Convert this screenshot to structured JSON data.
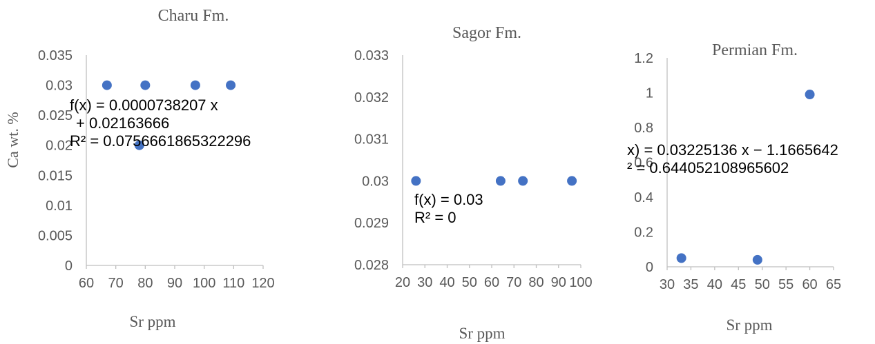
{
  "chart_data": [
    {
      "type": "scatter",
      "title": "Charu Fm.",
      "xlabel": "Sr ppm",
      "ylabel": "Ca wt. %",
      "xlim": [
        60,
        120
      ],
      "ylim": [
        0,
        0.035
      ],
      "x_ticks": [
        "60",
        "70",
        "80",
        "90",
        "100",
        "110",
        "120"
      ],
      "y_ticks": [
        "0",
        "0.005",
        "0.01",
        "0.015",
        "0.02",
        "0.025",
        "0.03",
        "0.035"
      ],
      "points": [
        {
          "x": 67,
          "y": 0.03
        },
        {
          "x": 78,
          "y": 0.02
        },
        {
          "x": 80,
          "y": 0.03
        },
        {
          "x": 97,
          "y": 0.03
        },
        {
          "x": 109,
          "y": 0.03
        }
      ],
      "trendline": {
        "equation_line1": "f(x) = 0.0000738207 x",
        "equation_line2": "+ 0.02163666",
        "r_squared": "R² = 0.0756661865322296"
      },
      "grid": false,
      "legend": "none",
      "marker_color": "#4472c4"
    },
    {
      "type": "scatter",
      "title": "Sagor Fm.",
      "xlabel": "Sr ppm",
      "ylabel": "",
      "xlim": [
        20,
        100
      ],
      "ylim": [
        0.028,
        0.033
      ],
      "x_ticks": [
        "20",
        "30",
        "40",
        "50",
        "60",
        "70",
        "80",
        "90",
        "100"
      ],
      "y_ticks": [
        "0.028",
        "0.029",
        "0.03",
        "0.031",
        "0.032",
        "0.033"
      ],
      "points": [
        {
          "x": 26,
          "y": 0.03
        },
        {
          "x": 64,
          "y": 0.03
        },
        {
          "x": 74,
          "y": 0.03
        },
        {
          "x": 96,
          "y": 0.03
        }
      ],
      "trendline": {
        "equation_line1": "f(x) = 0.03",
        "equation_line2": "",
        "r_squared": "R² = 0"
      },
      "grid": false,
      "legend": "none",
      "marker_color": "#4472c4"
    },
    {
      "type": "scatter",
      "title": "Permian Fm.",
      "xlabel": "Sr ppm",
      "ylabel": "",
      "xlim": [
        30,
        65
      ],
      "ylim": [
        0,
        1.2
      ],
      "x_ticks": [
        "30",
        "35",
        "40",
        "45",
        "50",
        "55",
        "60",
        "65"
      ],
      "y_ticks": [
        "0",
        "0.2",
        "0.4",
        "0.6",
        "0.8",
        "1",
        "1.2"
      ],
      "points": [
        {
          "x": 33,
          "y": 0.05
        },
        {
          "x": 49,
          "y": 0.04
        },
        {
          "x": 60,
          "y": 0.99
        }
      ],
      "trendline": {
        "equation_line1": "x) = 0.03225136 x − 1.1665642",
        "equation_line2": "",
        "r_squared": "² = 0.644052108965602"
      },
      "grid": false,
      "legend": "none",
      "marker_color": "#4472c4"
    }
  ]
}
